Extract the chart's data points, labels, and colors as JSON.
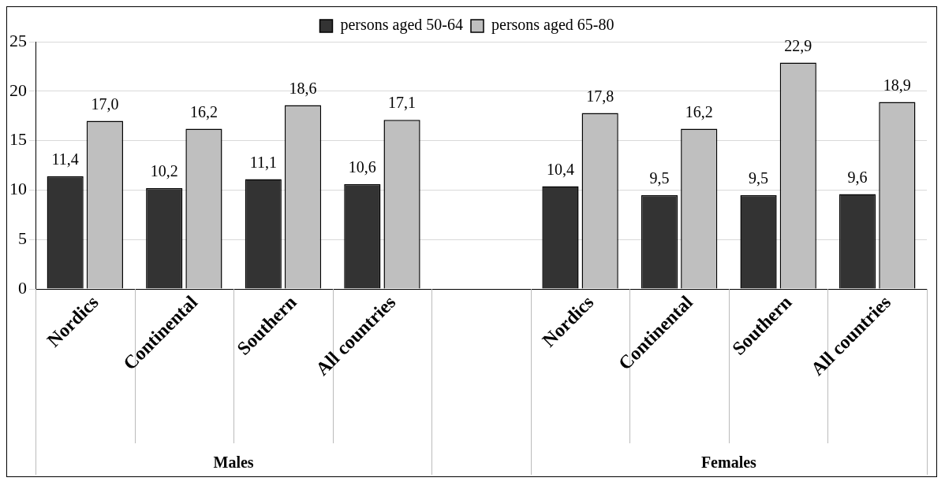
{
  "chart_data": {
    "type": "bar",
    "categories": [
      "Nordics",
      "Continental",
      "Southern",
      "All countries",
      null,
      "Nordics",
      "Continental",
      "Southern",
      "All countries"
    ],
    "series": [
      {
        "name": "persons aged 50-64",
        "color": "#333333",
        "values": [
          11.4,
          10.2,
          11.1,
          10.6,
          null,
          10.4,
          9.5,
          9.5,
          9.6
        ],
        "value_labels": [
          "11,4",
          "10,2",
          "11,1",
          "10,6",
          null,
          "10,4",
          "9,5",
          "9,5",
          "9,6"
        ]
      },
      {
        "name": "persons aged 65-80",
        "color": "#bfbfbf",
        "values": [
          17.0,
          16.2,
          18.6,
          17.1,
          null,
          17.8,
          16.2,
          22.9,
          18.9
        ],
        "value_labels": [
          "17,0",
          "16,2",
          "18,6",
          "17,1",
          null,
          "17,8",
          "16,2",
          "22,9",
          "18,9"
        ]
      }
    ],
    "ylim": [
      0,
      25
    ],
    "yticks": [
      0,
      5,
      10,
      15,
      20,
      25
    ],
    "grid": "y",
    "legend": "top",
    "annotations": [
      "Males",
      "Females"
    ]
  }
}
